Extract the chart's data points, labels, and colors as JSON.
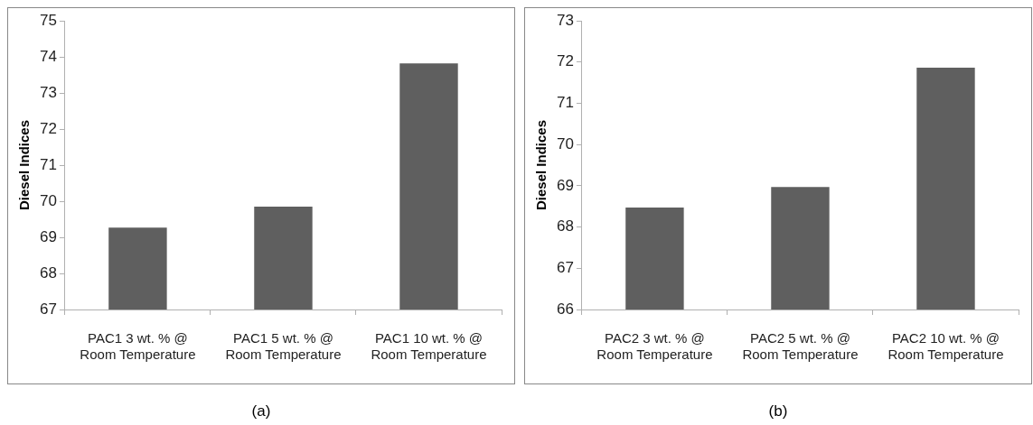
{
  "chart_data": [
    {
      "type": "bar",
      "ylabel": "Diesel Indices",
      "categories": [
        "PAC1 3 wt. % @ Room Temperature",
        "PAC1 5 wt. % @ Room Temperature",
        "PAC1 10 wt. % @ Room Temperature"
      ],
      "values": [
        69.27,
        69.85,
        73.82
      ],
      "color": "#5f5f5f",
      "ylim": [
        67,
        75
      ],
      "yticks": [
        67,
        68,
        69,
        70,
        71,
        72,
        73,
        74,
        75
      ],
      "grid": false,
      "legend": false,
      "annotations": [
        "(a)"
      ]
    },
    {
      "type": "bar",
      "ylabel": "Diesel Indices",
      "categories": [
        "PAC2 3 wt. % @ Room Temperature",
        "PAC2 5 wt. % @ Room Temperature",
        "PAC2 10 wt. % @ Room Temperature"
      ],
      "values": [
        68.47,
        68.97,
        71.86
      ],
      "color": "#5f5f5f",
      "ylim": [
        66,
        73
      ],
      "yticks": [
        66,
        67,
        68,
        69,
        70,
        71,
        72,
        73
      ],
      "grid": false,
      "legend": false,
      "annotations": [
        "(b)"
      ]
    }
  ]
}
